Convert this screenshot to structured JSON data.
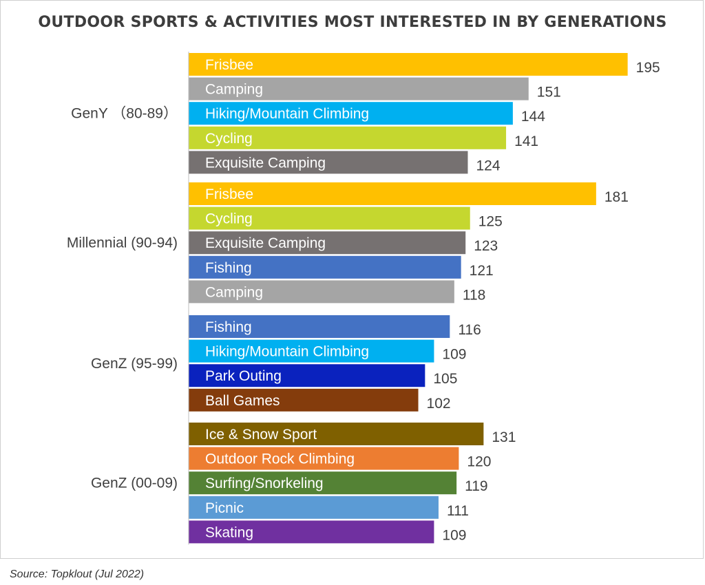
{
  "chart_data": {
    "type": "bar",
    "orientation": "horizontal",
    "title": "OUTDOOR SPORTS & ACTIVITIES MOST INTERESTED IN BY GENERATIONS",
    "xlim": [
      0,
      200
    ],
    "grid": false,
    "groups": [
      {
        "name": "GenY （80-89）",
        "bars": [
          {
            "label": "Frisbee",
            "value": 195,
            "color": "#FFC000"
          },
          {
            "label": "Camping",
            "value": 151,
            "color": "#A5A5A5"
          },
          {
            "label": "Hiking/Mountain Climbing",
            "value": 144,
            "color": "#00B0F0"
          },
          {
            "label": "Cycling",
            "value": 141,
            "color": "#C5D72F"
          },
          {
            "label": "Exquisite Camping",
            "value": 124,
            "color": "#767171"
          }
        ]
      },
      {
        "name": "Millennial (90-94)",
        "bars": [
          {
            "label": "Frisbee",
            "value": 181,
            "color": "#FFC000"
          },
          {
            "label": "Cycling",
            "value": 125,
            "color": "#C5D72F"
          },
          {
            "label": "Exquisite Camping",
            "value": 123,
            "color": "#767171"
          },
          {
            "label": "Fishing",
            "value": 121,
            "color": "#4472C4"
          },
          {
            "label": "Camping",
            "value": 118,
            "color": "#A5A5A5"
          }
        ]
      },
      {
        "name": "GenZ (95-99)",
        "bars": [
          {
            "label": "Fishing",
            "value": 116,
            "color": "#4472C4"
          },
          {
            "label": "Hiking/Mountain Climbing",
            "value": 109,
            "color": "#00B0F0"
          },
          {
            "label": "Park Outing",
            "value": 105,
            "color": "#0A22BE"
          },
          {
            "label": "Ball Games",
            "value": 102,
            "color": "#843C0C"
          }
        ]
      },
      {
        "name": "GenZ (00-09)",
        "bars": [
          {
            "label": "Ice & Snow Sport",
            "value": 131,
            "color": "#7F6000"
          },
          {
            "label": "Outdoor Rock Climbing",
            "value": 120,
            "color": "#ED7D31"
          },
          {
            "label": "Surfing/Snorkeling",
            "value": 119,
            "color": "#548235"
          },
          {
            "label": "Picnic",
            "value": 111,
            "color": "#5B9BD5"
          },
          {
            "label": "Skating",
            "value": 109,
            "color": "#7030A0"
          }
        ]
      }
    ]
  },
  "source": "Source: Topklout  (Jul 2022)"
}
